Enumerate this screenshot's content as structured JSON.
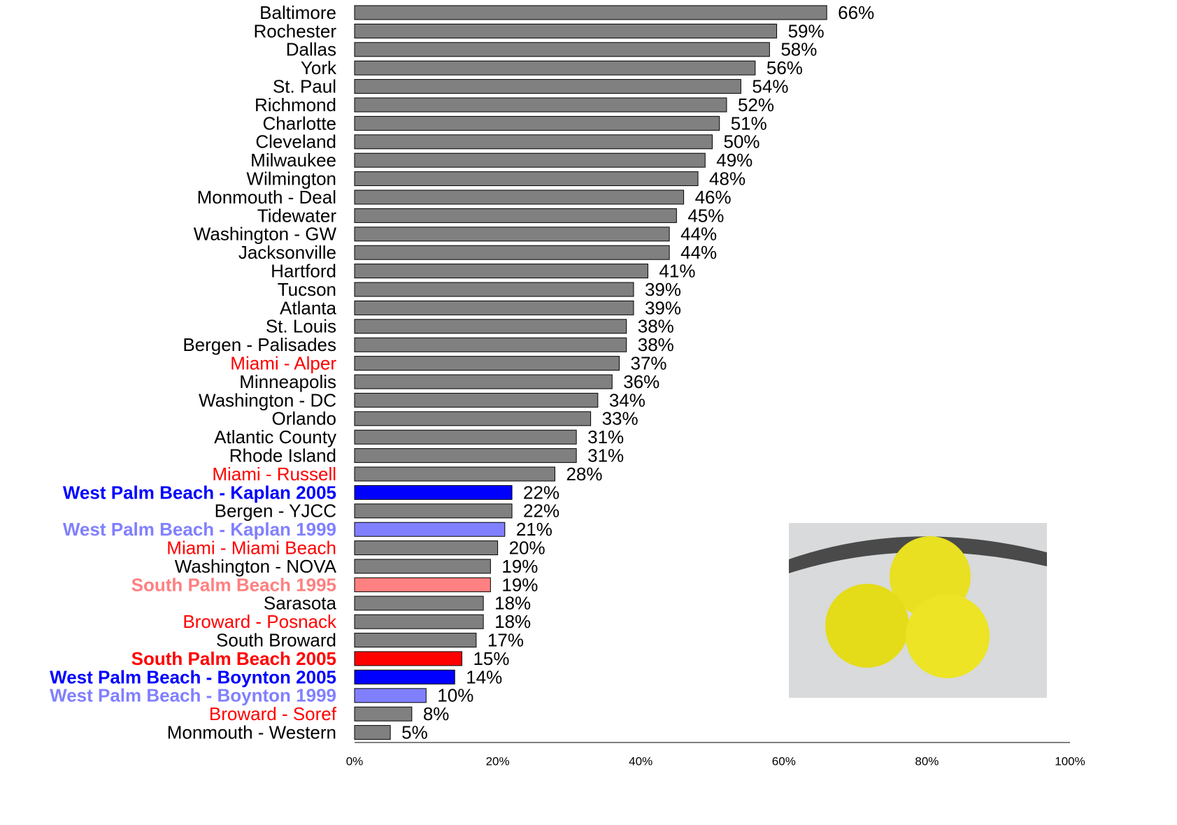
{
  "chart_data": {
    "type": "bar",
    "orientation": "horizontal",
    "categories": [
      "Baltimore",
      "Rochester",
      "Dallas",
      "York",
      "St. Paul",
      "Richmond",
      "Charlotte",
      "Cleveland",
      "Milwaukee",
      "Wilmington",
      "Monmouth - Deal",
      "Tidewater",
      "Washington - GW",
      "Jacksonville",
      "Hartford",
      "Tucson",
      "Atlanta",
      "St. Louis",
      "Bergen - Palisades",
      "Miami - Alper",
      "Minneapolis",
      "Washington - DC",
      "Orlando",
      "Atlantic County",
      "Rhode Island",
      "Miami - Russell",
      "West Palm Beach - Kaplan 2005",
      "Bergen - YJCC",
      "West Palm Beach - Kaplan 1999",
      "Miami - Miami Beach",
      "Washington - NOVA",
      "South Palm Beach 1995",
      "Sarasota",
      "Broward - Posnack",
      "South Broward",
      "South Palm Beach 2005",
      "West Palm Beach - Boynton 2005",
      "West Palm Beach - Boynton 1999",
      "Broward - Soref",
      "Monmouth - Western"
    ],
    "values": [
      66,
      59,
      58,
      56,
      54,
      52,
      51,
      50,
      49,
      48,
      46,
      45,
      44,
      44,
      41,
      39,
      39,
      38,
      38,
      37,
      36,
      34,
      33,
      31,
      31,
      28,
      22,
      22,
      21,
      20,
      19,
      19,
      18,
      18,
      17,
      15,
      14,
      10,
      8,
      5
    ],
    "value_labels": [
      "66%",
      "59%",
      "58%",
      "56%",
      "54%",
      "52%",
      "51%",
      "50%",
      "49%",
      "48%",
      "46%",
      "45%",
      "44%",
      "44%",
      "41%",
      "39%",
      "39%",
      "38%",
      "38%",
      "37%",
      "36%",
      "34%",
      "33%",
      "31%",
      "31%",
      "28%",
      "22%",
      "22%",
      "21%",
      "20%",
      "19%",
      "19%",
      "18%",
      "18%",
      "17%",
      "15%",
      "14%",
      "10%",
      "8%",
      "5%"
    ],
    "colors": [
      "#808080",
      "#808080",
      "#808080",
      "#808080",
      "#808080",
      "#808080",
      "#808080",
      "#808080",
      "#808080",
      "#808080",
      "#808080",
      "#808080",
      "#808080",
      "#808080",
      "#808080",
      "#808080",
      "#808080",
      "#808080",
      "#808080",
      "#808080",
      "#808080",
      "#808080",
      "#808080",
      "#808080",
      "#808080",
      "#808080",
      "#0000ff",
      "#808080",
      "#8080ff",
      "#808080",
      "#808080",
      "#ff8080",
      "#808080",
      "#808080",
      "#808080",
      "#ff0000",
      "#0000ff",
      "#8080ff",
      "#808080",
      "#808080"
    ],
    "label_colors": [
      "#000000",
      "#000000",
      "#000000",
      "#000000",
      "#000000",
      "#000000",
      "#000000",
      "#000000",
      "#000000",
      "#000000",
      "#000000",
      "#000000",
      "#000000",
      "#000000",
      "#000000",
      "#000000",
      "#000000",
      "#000000",
      "#000000",
      "#ff0000",
      "#000000",
      "#000000",
      "#000000",
      "#000000",
      "#000000",
      "#ff0000",
      "#0000ff",
      "#000000",
      "#8080ff",
      "#ff0000",
      "#000000",
      "#ff8080",
      "#000000",
      "#ff0000",
      "#000000",
      "#ff0000",
      "#0000ff",
      "#8080ff",
      "#ff0000",
      "#000000"
    ],
    "label_bold": [
      false,
      false,
      false,
      false,
      false,
      false,
      false,
      false,
      false,
      false,
      false,
      false,
      false,
      false,
      false,
      false,
      false,
      false,
      false,
      false,
      false,
      false,
      false,
      false,
      false,
      false,
      true,
      false,
      true,
      false,
      false,
      true,
      false,
      false,
      false,
      true,
      true,
      true,
      false,
      false
    ],
    "xlim": [
      0,
      100
    ],
    "xticks": [
      {
        "value": 0,
        "label": "0%"
      },
      {
        "value": 20,
        "label": "20%"
      },
      {
        "value": 40,
        "label": "40%"
      },
      {
        "value": 60,
        "label": "60%"
      },
      {
        "value": 80,
        "label": "80%"
      },
      {
        "value": 100,
        "label": "100%"
      }
    ],
    "grid": false
  }
}
